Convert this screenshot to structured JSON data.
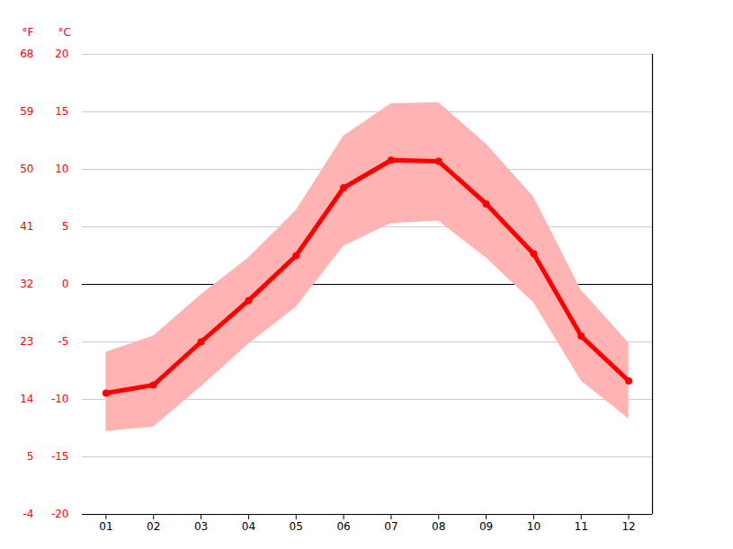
{
  "chart_data": {
    "type": "line",
    "x": [
      1,
      2,
      3,
      4,
      5,
      6,
      7,
      8,
      9,
      10,
      11,
      12
    ],
    "values": [
      -9.45,
      -8.75,
      -5.0,
      -1.4,
      2.5,
      8.4,
      10.8,
      10.7,
      7.0,
      2.65,
      -4.5,
      -8.4
    ],
    "min_values": [
      -12.8,
      -12.4,
      -8.9,
      -5.2,
      -2.0,
      3.3,
      5.3,
      5.5,
      2.3,
      -1.6,
      -8.4,
      -11.7
    ],
    "max_values": [
      -5.9,
      -4.5,
      -0.9,
      2.3,
      6.4,
      12.9,
      15.7,
      15.8,
      12.2,
      7.6,
      -0.5,
      -5.1
    ],
    "color": "#ff0000",
    "band_color": "#ffb3b3",
    "marker": "circle",
    "xlim": [
      0.5,
      12.5
    ],
    "xticks": [
      {
        "value": 1,
        "label": "01"
      },
      {
        "value": 2,
        "label": "02"
      },
      {
        "value": 3,
        "label": "03"
      },
      {
        "value": 4,
        "label": "04"
      },
      {
        "value": 5,
        "label": "05"
      },
      {
        "value": 6,
        "label": "06"
      },
      {
        "value": 7,
        "label": "07"
      },
      {
        "value": 8,
        "label": "08"
      },
      {
        "value": 9,
        "label": "09"
      },
      {
        "value": 10,
        "label": "10"
      },
      {
        "value": 11,
        "label": "11"
      },
      {
        "value": 12,
        "label": "12"
      }
    ],
    "y_label": "°C",
    "ylim": [
      -20,
      20
    ],
    "yticks": [
      -20,
      -15,
      -10,
      -5,
      0,
      5,
      10,
      15,
      20
    ],
    "y2_label": "°F",
    "y2lim": [
      -4,
      68
    ],
    "y2ticks": [
      -4,
      5,
      14,
      23,
      32,
      41,
      50,
      59,
      68
    ],
    "grid": true
  }
}
